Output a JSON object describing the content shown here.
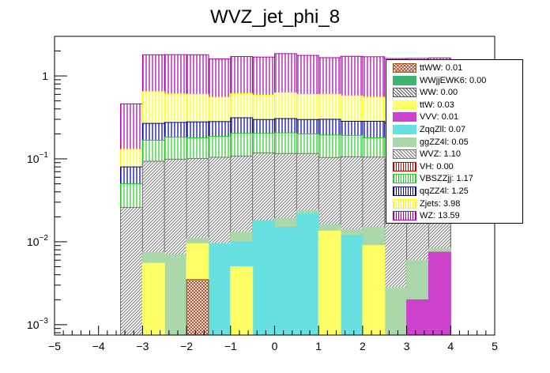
{
  "title": "WVZ_jet_phi_8",
  "chart_data": {
    "type": "bar",
    "stacked": true,
    "log_y": true,
    "title": "WVZ_jet_phi_8",
    "xlabel": "",
    "ylabel": "",
    "xlim": [
      -5,
      5
    ],
    "ylim": [
      0.00075,
      3.0
    ],
    "x_ticks": [
      "-5",
      "-4",
      "-3",
      "-2",
      "-1",
      "0",
      "1",
      "2",
      "3",
      "4",
      "5"
    ],
    "y_ticks": [
      {
        "value": 0.001,
        "base": "10",
        "exp": "-3"
      },
      {
        "value": 0.01,
        "base": "10",
        "exp": "-2"
      },
      {
        "value": 0.1,
        "base": "10",
        "exp": "-1"
      },
      {
        "value": 1,
        "base": "1",
        "exp": ""
      }
    ],
    "bin_edges": [
      -5.0,
      -4.5,
      -4.0,
      -3.5,
      -3.0,
      -2.5,
      -2.0,
      -1.5,
      -1.0,
      -0.5,
      0.0,
      0.5,
      1.0,
      1.5,
      2.0,
      2.5,
      3.0,
      3.5,
      4.0,
      4.5,
      5.0
    ],
    "legend_position": "top-right",
    "series": [
      {
        "name": "ttWW: 0.01",
        "color": "#a0522d",
        "pattern": "cross",
        "values": [
          0,
          0,
          0,
          0,
          0,
          0,
          0.0035,
          0,
          0,
          0,
          0,
          0,
          0,
          0,
          0,
          0,
          0,
          0,
          0,
          0
        ]
      },
      {
        "name": "WWjjEWK6: 0.00",
        "color": "#3cb371",
        "pattern": "solid",
        "values": [
          0,
          0,
          0,
          0,
          0,
          0,
          0,
          0,
          0,
          0,
          0,
          0,
          0,
          0,
          0,
          0,
          0,
          0,
          0,
          0
        ]
      },
      {
        "name": "WW: 0.00",
        "color": "#555555",
        "pattern": "hatch",
        "values": [
          0,
          0,
          0,
          0,
          0,
          0,
          0,
          0,
          0,
          0,
          0,
          0,
          0,
          0,
          0,
          0,
          0,
          0,
          0,
          0
        ]
      },
      {
        "name": "ttW: 0.03",
        "color": "#ffff66",
        "pattern": "solid",
        "values": [
          0,
          0,
          0,
          0,
          0.0055,
          0,
          0.006,
          0,
          0.005,
          0,
          0,
          0,
          0.0135,
          0,
          0.009,
          0,
          0,
          0,
          0,
          0
        ]
      },
      {
        "name": "VVV: 0.01",
        "color": "#cc44cc",
        "pattern": "solid",
        "values": [
          0,
          0,
          0,
          0,
          0,
          0,
          0,
          0,
          0,
          0,
          0,
          0,
          0,
          0,
          0,
          0,
          0.002,
          0.0075,
          0,
          0
        ]
      },
      {
        "name": "ZqqZll: 0.07",
        "color": "#66e0e0",
        "pattern": "solid",
        "values": [
          0,
          0,
          0,
          0,
          0,
          0,
          0,
          0.0095,
          0.005,
          0.018,
          0.015,
          0.022,
          0,
          0.012,
          0,
          0,
          0,
          0,
          0,
          0
        ]
      },
      {
        "name": "ggZZ4l: 0.05",
        "color": "#aad8aa",
        "pattern": "solid",
        "values": [
          0,
          0,
          0,
          0,
          0.002,
          0.007,
          0.0015,
          0,
          0.003,
          0,
          0.004,
          0.002,
          0.0025,
          0.002,
          0.006,
          0.0028,
          0.004,
          0.0008,
          0,
          0
        ]
      },
      {
        "name": "WVZ: 1.10",
        "color": "#777777",
        "pattern": "hatch",
        "values": [
          0,
          0,
          0,
          0.026,
          0.086,
          0.092,
          0.09,
          0.095,
          0.095,
          0.1,
          0.097,
          0.092,
          0.088,
          0.092,
          0.09,
          0.095,
          0.094,
          0.09,
          0,
          0
        ]
      },
      {
        "name": "VH: 0.00",
        "color": "#cc0000",
        "pattern": "vertical",
        "values": [
          0,
          0,
          0,
          0,
          0,
          0,
          0,
          0,
          0,
          0,
          0,
          0,
          0,
          0,
          0,
          0,
          0,
          0,
          0,
          0
        ]
      },
      {
        "name": "VBSZZjj: 1.17",
        "color": "#22cc22",
        "pattern": "vertical",
        "values": [
          0,
          0,
          0,
          0.024,
          0.074,
          0.084,
          0.078,
          0.082,
          0.095,
          0.085,
          0.09,
          0.084,
          0.09,
          0.086,
          0.074,
          0.083,
          0.079,
          0.08,
          0,
          0
        ]
      },
      {
        "name": "qqZZ4l: 1.25",
        "color": "#000099",
        "pattern": "vertical",
        "values": [
          0,
          0,
          0,
          0.03,
          0.1,
          0.092,
          0.1,
          0.095,
          0.11,
          0.095,
          0.1,
          0.098,
          0.106,
          0.092,
          0.105,
          0.09,
          0.098,
          0.1,
          0,
          0
        ]
      },
      {
        "name": "Zjets: 3.98",
        "color": "#ffff00",
        "pattern": "vertical",
        "values": [
          0,
          0,
          0,
          0.05,
          0.38,
          0.33,
          0.32,
          0.27,
          0.3,
          0.29,
          0.32,
          0.3,
          0.3,
          0.29,
          0.27,
          0.27,
          0.3,
          0.3,
          0,
          0
        ]
      },
      {
        "name": "WZ: 13.59",
        "color": "#aa00aa",
        "pattern": "vertical",
        "values": [
          0,
          0,
          0,
          0.33,
          1.15,
          1.2,
          1.2,
          1.05,
          1.1,
          1.1,
          1.23,
          1.17,
          1.06,
          1.15,
          1.15,
          1.08,
          1.05,
          1.07,
          0,
          0
        ]
      }
    ]
  }
}
